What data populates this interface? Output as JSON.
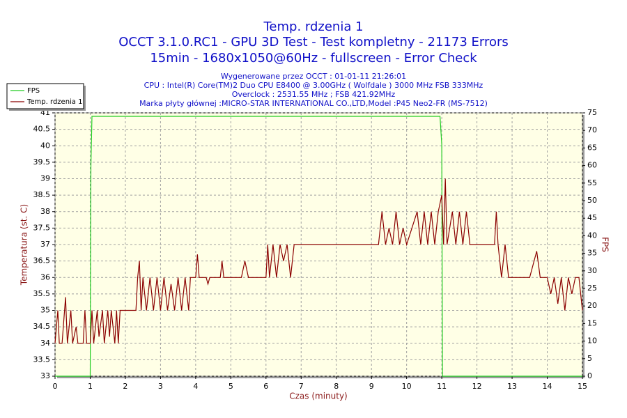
{
  "chart_data": {
    "type": "line",
    "title": "Temp. rdzenia 1",
    "subtitle": [
      "OCCT 3.1.0.RC1 - GPU 3D Test - Test kompletny - 21173 Errors",
      "15min - 1680x1050@60Hz - fullscreen - Error Check"
    ],
    "info": [
      "Wygenerowane przez OCCT : 01-01-11 21:26:01",
      "CPU : Intel(R) Core(TM)2 Duo CPU E8400 @ 3.00GHz ( Wolfdale ) 3000 MHz FSB 333MHz",
      "Overclock : 2531.55 MHz ; FSB 421.92MHz",
      "Marka płyty głównej :MICRO-STAR INTERNATIONAL CO.,LTD,Model :P45 Neo2-FR (MS-7512)"
    ],
    "xlabel": "Czas (minuty)",
    "ylabel": "Temperatura (st. C)",
    "y2label": "FPS",
    "xlim": [
      0,
      15
    ],
    "xticks": [
      0,
      1,
      2,
      3,
      4,
      5,
      6,
      7,
      8,
      9,
      10,
      11,
      12,
      13,
      14,
      15
    ],
    "ylim": [
      33,
      41
    ],
    "yticks": [
      33,
      33.5,
      34,
      34.5,
      35,
      35.5,
      36,
      36.5,
      37,
      37.5,
      38,
      38.5,
      39,
      39.5,
      40,
      40.5,
      41
    ],
    "y2lim": [
      0,
      75
    ],
    "y2ticks": [
      0,
      5,
      10,
      15,
      20,
      25,
      30,
      35,
      40,
      45,
      50,
      55,
      60,
      65,
      70,
      75
    ],
    "grid": true,
    "legend": "top-left",
    "series": [
      {
        "name": "FPS",
        "color": "#22cc22",
        "axis": "y2",
        "x": [
          0,
          1.0,
          1.02,
          1.05,
          10.95,
          11.0,
          11.02,
          15
        ],
        "values": [
          0,
          0,
          60,
          74,
          74,
          66,
          0,
          0
        ]
      },
      {
        "name": "Temp. rdzenia 1",
        "color": "#8b0000",
        "x": [
          0,
          0.08,
          0.12,
          0.2,
          0.3,
          0.35,
          0.45,
          0.5,
          0.6,
          0.65,
          0.8,
          0.85,
          0.9,
          1.0,
          1.05,
          1.1,
          1.2,
          1.25,
          1.35,
          1.4,
          1.5,
          1.55,
          1.6,
          1.7,
          1.75,
          1.8,
          1.85,
          1.9,
          2.0,
          2.3,
          2.35,
          2.4,
          2.45,
          2.5,
          2.6,
          2.7,
          2.8,
          2.9,
          3.0,
          3.1,
          3.2,
          3.3,
          3.4,
          3.5,
          3.6,
          3.7,
          3.8,
          3.85,
          3.9,
          4.0,
          4.05,
          4.1,
          4.3,
          4.35,
          4.4,
          4.5,
          4.7,
          4.75,
          4.8,
          5.3,
          5.4,
          5.5,
          6.0,
          6.05,
          6.1,
          6.2,
          6.3,
          6.4,
          6.5,
          6.6,
          6.7,
          6.8,
          6.9,
          7.5,
          8.5,
          9.2,
          9.3,
          9.4,
          9.5,
          9.6,
          9.7,
          9.8,
          9.9,
          10.0,
          10.3,
          10.4,
          10.5,
          10.6,
          10.7,
          10.8,
          10.9,
          11.0,
          11.05,
          11.1,
          11.15,
          11.3,
          11.4,
          11.5,
          11.6,
          11.7,
          11.8,
          12.0,
          12.5,
          12.55,
          12.6,
          12.7,
          12.8,
          12.9,
          13.0,
          13.5,
          13.7,
          13.8,
          14.0,
          14.1,
          14.2,
          14.3,
          14.4,
          14.5,
          14.6,
          14.7,
          14.8,
          14.9,
          15.0
        ],
        "values": [
          34,
          35,
          34,
          34,
          35.4,
          34,
          35,
          34,
          34.5,
          34,
          34,
          35,
          34,
          34,
          35,
          34,
          35,
          34.2,
          35,
          34,
          35,
          34.2,
          35,
          34,
          35,
          34,
          35,
          35,
          35,
          35,
          36,
          36.5,
          35,
          36,
          35,
          36,
          35,
          36,
          35,
          36,
          35,
          35.8,
          35,
          36,
          35,
          36,
          35,
          36,
          36,
          36,
          36.7,
          36,
          36,
          35.8,
          36,
          36,
          36,
          36.5,
          36,
          36,
          36.5,
          36,
          36,
          37,
          36,
          37,
          36,
          37,
          36.5,
          37,
          36,
          37,
          37,
          37,
          37,
          37,
          38,
          37,
          37.5,
          37,
          38,
          37,
          37.5,
          37,
          38,
          37,
          38,
          37,
          38,
          37,
          38,
          38.5,
          37,
          39,
          37,
          38,
          37,
          38,
          37,
          38,
          37,
          37,
          37,
          38,
          37,
          36,
          37,
          36,
          36,
          36,
          36.8,
          36,
          36,
          35.5,
          36,
          35.2,
          36,
          35,
          36,
          35.5,
          36,
          36,
          35
        ]
      }
    ]
  }
}
